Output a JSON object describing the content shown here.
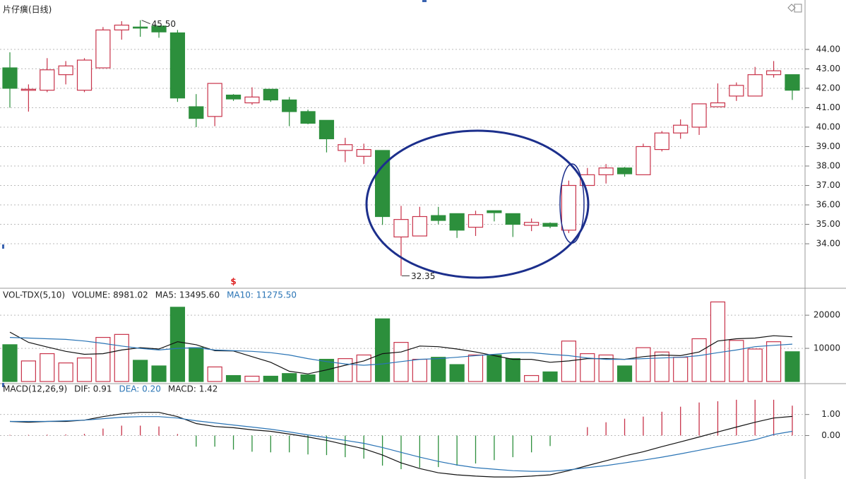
{
  "chart_data": [
    {
      "type": "candlestick",
      "title": "片仔癀(日线)",
      "open": [
        43.05,
        41.9,
        41.9,
        42.7,
        41.9,
        43.05,
        45.0,
        45.15,
        45.2,
        44.85,
        41.05,
        40.55,
        41.65,
        41.25,
        41.95,
        41.4,
        40.8,
        40.35,
        38.8,
        38.5,
        38.8,
        34.35,
        34.4,
        35.45,
        35.55,
        34.85,
        35.7,
        35.55,
        34.95,
        35.05,
        34.7,
        37.0,
        37.55,
        37.9,
        37.55,
        38.85,
        39.7,
        40.0,
        41.05,
        41.6,
        41.6,
        42.7,
        42.7
      ],
      "high": [
        43.85,
        42.2,
        43.55,
        43.4,
        43.55,
        45.15,
        45.45,
        45.5,
        45.2,
        45.0,
        41.7,
        42.25,
        41.7,
        42.05,
        41.95,
        41.55,
        40.9,
        40.35,
        39.45,
        39.15,
        38.8,
        35.95,
        35.9,
        35.9,
        35.55,
        35.7,
        35.7,
        35.55,
        35.3,
        35.1,
        37.25,
        37.9,
        38.1,
        37.95,
        39.15,
        39.8,
        40.4,
        41.2,
        42.25,
        42.3,
        43.1,
        43.4,
        42.7
      ],
      "low": [
        41.0,
        40.8,
        41.8,
        42.2,
        41.8,
        43.05,
        44.5,
        44.65,
        44.6,
        41.3,
        40.0,
        40.05,
        41.35,
        41.15,
        41.3,
        40.05,
        40.15,
        38.7,
        38.2,
        38.1,
        34.97,
        32.35,
        34.4,
        35.0,
        34.3,
        34.4,
        35.15,
        34.35,
        34.65,
        34.8,
        34.55,
        37.0,
        37.1,
        37.45,
        37.55,
        38.75,
        39.4,
        39.6,
        41.05,
        41.35,
        41.6,
        42.55,
        41.4
      ],
      "close": [
        42.0,
        41.95,
        42.95,
        43.15,
        43.45,
        45.0,
        45.25,
        45.1,
        44.9,
        41.5,
        40.45,
        42.25,
        41.45,
        41.55,
        41.4,
        40.8,
        40.2,
        39.4,
        39.1,
        38.85,
        35.4,
        35.25,
        35.4,
        35.2,
        34.7,
        35.5,
        35.6,
        35.0,
        35.1,
        34.9,
        37.0,
        37.55,
        37.9,
        37.6,
        39.0,
        39.7,
        40.1,
        41.2,
        41.25,
        42.15,
        42.7,
        42.9,
        41.9
      ],
      "up_color": "#c8334a",
      "down_color": "#2c8f3c",
      "max_label": "45.50",
      "min_label": "32.35",
      "marker": "$",
      "ylim": [
        31.82,
        46.36
      ],
      "yticks": [
        {
          "value": 34,
          "label": "34.00"
        },
        {
          "value": 35,
          "label": "35.00"
        },
        {
          "value": 36,
          "label": "36.00"
        },
        {
          "value": 37,
          "label": "37.00"
        },
        {
          "value": 38,
          "label": "38.00"
        },
        {
          "value": 39,
          "label": "39.00"
        },
        {
          "value": 40,
          "label": "40.00"
        },
        {
          "value": 41,
          "label": "41.00"
        },
        {
          "value": 42,
          "label": "42.00"
        },
        {
          "value": 43,
          "label": "43.00"
        },
        {
          "value": 44,
          "label": "44.00"
        }
      ],
      "grid": true
    },
    {
      "type": "volume",
      "legend": [
        {
          "text": "VOL-TDX(5,10)",
          "color": "#222"
        },
        {
          "text": "VOLUME: 8981.02",
          "color": "#222"
        },
        {
          "text": "MA5: 13495.60",
          "color": "#222"
        },
        {
          "text": "MA10: 11275.50",
          "color": "#2a74b5"
        }
      ],
      "values": [
        11100,
        6200,
        8400,
        5600,
        7100,
        13300,
        14200,
        6400,
        4700,
        22400,
        10200,
        4400,
        1800,
        1600,
        1600,
        2400,
        2000,
        6700,
        6900,
        8000,
        18900,
        11800,
        6700,
        7300,
        5100,
        8000,
        8000,
        6900,
        1800,
        2900,
        12200,
        8400,
        8000,
        4700,
        10200,
        8900,
        7300,
        12900,
        24000,
        12400,
        9800,
        12000,
        8981.02
      ],
      "lines": [
        {
          "color": "#111",
          "values": [
            14900,
            11800,
            10400,
            9100,
            8200,
            8400,
            9500,
            10200,
            9800,
            12000,
            11100,
            9300,
            9200,
            7500,
            5800,
            3100,
            2300,
            3500,
            4900,
            6200,
            8400,
            8900,
            10700,
            10500,
            9800,
            8900,
            7800,
            6700,
            6700,
            5800,
            6200,
            6900,
            6900,
            6700,
            7500,
            8000,
            7800,
            8900,
            12200,
            12900,
            13100,
            13800,
            13495.6
          ]
        },
        {
          "color": "#2a74b5",
          "values": [
            13300,
            13100,
            12900,
            12700,
            12200,
            11500,
            10700,
            10000,
            9500,
            10000,
            10200,
            9500,
            9300,
            9100,
            8700,
            8000,
            6900,
            6000,
            5300,
            4900,
            5300,
            6000,
            6700,
            6900,
            7300,
            7800,
            8200,
            8700,
            8700,
            8200,
            7800,
            7100,
            6700,
            6700,
            6900,
            7100,
            7300,
            7800,
            8700,
            9500,
            10500,
            10900,
            11275.5
          ]
        }
      ],
      "ylim": [
        0,
        27700
      ],
      "yticks": [
        10000,
        20000
      ],
      "grid": true
    },
    {
      "type": "macd",
      "legend": [
        {
          "text": "MACD(12,26,9)",
          "color": "#222"
        },
        {
          "text": "DIF: 0.91",
          "color": "#222"
        },
        {
          "text": "DEA: 0.20",
          "color": "#2a74b5"
        },
        {
          "text": "MACD: 1.42",
          "color": "#222"
        }
      ],
      "values": [
        0.03,
        0.03,
        0.04,
        0.05,
        0.08,
        0.33,
        0.47,
        0.47,
        0.43,
        0.07,
        -0.53,
        -0.53,
        -0.67,
        -0.77,
        -0.8,
        -0.8,
        -0.9,
        -0.93,
        -1.03,
        -1.1,
        -1.43,
        -1.6,
        -1.53,
        -1.5,
        -1.43,
        -1.33,
        -1.17,
        -1.03,
        -0.8,
        -0.5,
        0.0,
        0.4,
        0.63,
        0.8,
        0.9,
        1.13,
        1.37,
        1.57,
        1.63,
        1.7,
        1.7,
        1.7,
        1.42
      ],
      "lines": [
        {
          "color": "#111",
          "values": [
            0.67,
            0.63,
            0.67,
            0.67,
            0.73,
            0.9,
            1.03,
            1.1,
            1.1,
            0.9,
            0.57,
            0.43,
            0.37,
            0.27,
            0.2,
            0.07,
            -0.07,
            -0.23,
            -0.43,
            -0.63,
            -0.93,
            -1.3,
            -1.57,
            -1.77,
            -1.87,
            -1.93,
            -1.97,
            -1.97,
            -1.93,
            -1.87,
            -1.67,
            -1.43,
            -1.2,
            -0.97,
            -0.77,
            -0.53,
            -0.3,
            -0.07,
            0.17,
            0.4,
            0.63,
            0.83,
            0.91
          ]
        },
        {
          "color": "#2a74b5",
          "values": [
            0.67,
            0.67,
            0.67,
            0.7,
            0.73,
            0.8,
            0.87,
            0.9,
            0.9,
            0.83,
            0.7,
            0.6,
            0.5,
            0.4,
            0.3,
            0.17,
            0.03,
            -0.1,
            -0.23,
            -0.37,
            -0.57,
            -0.8,
            -1.03,
            -1.23,
            -1.4,
            -1.53,
            -1.6,
            -1.67,
            -1.7,
            -1.7,
            -1.63,
            -1.53,
            -1.43,
            -1.3,
            -1.17,
            -1.03,
            -0.87,
            -0.7,
            -0.53,
            -0.37,
            -0.2,
            0.05,
            0.2
          ]
        }
      ],
      "up_color": "#c8334a",
      "down_color": "#2c8f3c",
      "ylim": [
        -2.0,
        2.4
      ],
      "yticks": [
        {
          "value": 0,
          "label": "0.00"
        },
        {
          "value": 1,
          "label": "1.00"
        }
      ],
      "grid": true
    }
  ]
}
